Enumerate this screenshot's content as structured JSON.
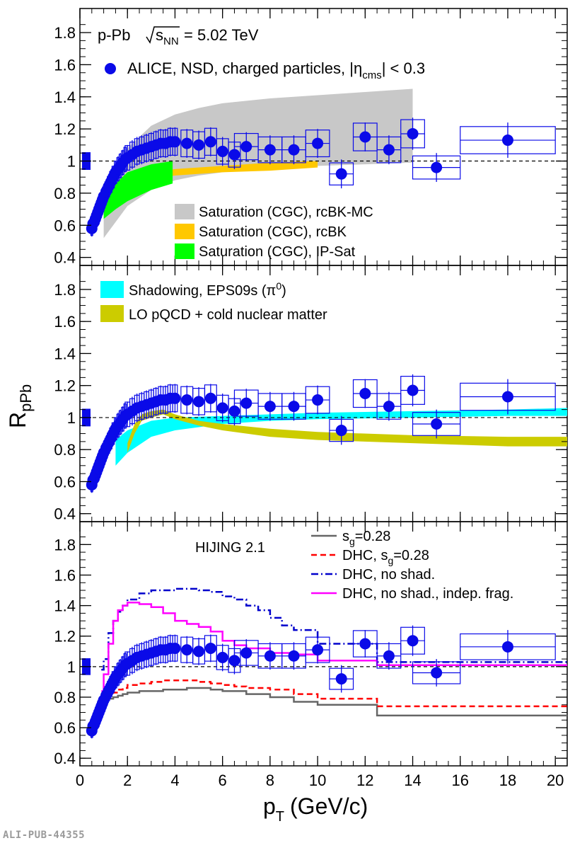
{
  "footer": {
    "publication_id": "ALI-PUB-44355"
  },
  "colors": {
    "alice_points": "#0a0ae8",
    "rcbk_mc": "#c8c8c8",
    "rcbk": "#ffc800",
    "ipsat": "#00ff00",
    "eps09s": "#00ffff",
    "lo_pqcd": "#cccc00",
    "hijing_sg": "#666666",
    "hijing_dhc_sg": "#ff0000",
    "hijing_dhc_noshad": "#0000cc",
    "hijing_dhc_indep": "#ff00ff"
  },
  "chart_data": {
    "type": "scatter",
    "panels": 3,
    "xlabel": "p",
    "xlabel_sub": "T",
    "xlabel_unit": "(GeV/c)",
    "ylabel": "R",
    "ylabel_sub": "pPb",
    "xlim": [
      0,
      20.5
    ],
    "ylim": [
      0.35,
      1.95
    ],
    "x_ticks": [
      "0",
      "2",
      "4",
      "6",
      "8",
      "10",
      "12",
      "14",
      "16",
      "18",
      "20"
    ],
    "y_ticks": [
      "0.4",
      "0.6",
      "0.8",
      "1",
      "1.2",
      "1.4",
      "1.6",
      "1.8"
    ],
    "y_tick_values": [
      0.4,
      0.6,
      0.8,
      1.0,
      1.2,
      1.4,
      1.6,
      1.8
    ],
    "reference_line": 1.0,
    "normalization_box": {
      "center": 1.0,
      "half_height": 0.055
    },
    "header_system": "p-Pb",
    "header_energy_lhs": "s",
    "header_energy_sub": "NN",
    "header_energy_rhs": "= 5.02 TeV",
    "alice_series": {
      "name": "ALICE, NSD, charged particles, |η",
      "name_sub": "cms",
      "name_tail": "| < 0.3",
      "points": [
        [
          0.5,
          0.58,
          0.04,
          0.05
        ],
        [
          0.55,
          0.61,
          0.04,
          0.05
        ],
        [
          0.6,
          0.62,
          0.04,
          0.05
        ],
        [
          0.65,
          0.64,
          0.04,
          0.05
        ],
        [
          0.7,
          0.66,
          0.04,
          0.05
        ],
        [
          0.75,
          0.68,
          0.04,
          0.05
        ],
        [
          0.8,
          0.7,
          0.04,
          0.05
        ],
        [
          0.85,
          0.72,
          0.04,
          0.05
        ],
        [
          0.9,
          0.74,
          0.04,
          0.05
        ],
        [
          0.95,
          0.76,
          0.04,
          0.05
        ],
        [
          1.0,
          0.78,
          0.05,
          0.06
        ],
        [
          1.1,
          0.81,
          0.05,
          0.06
        ],
        [
          1.2,
          0.84,
          0.05,
          0.06
        ],
        [
          1.3,
          0.87,
          0.05,
          0.07
        ],
        [
          1.4,
          0.9,
          0.05,
          0.07
        ],
        [
          1.5,
          0.93,
          0.05,
          0.07
        ],
        [
          1.6,
          0.95,
          0.05,
          0.08
        ],
        [
          1.7,
          0.97,
          0.05,
          0.08
        ],
        [
          1.8,
          0.99,
          0.05,
          0.08
        ],
        [
          1.9,
          1.01,
          0.05,
          0.08
        ],
        [
          2.0,
          1.02,
          0.1,
          0.08
        ],
        [
          2.2,
          1.04,
          0.1,
          0.09
        ],
        [
          2.4,
          1.06,
          0.1,
          0.09
        ],
        [
          2.6,
          1.07,
          0.1,
          0.09
        ],
        [
          2.8,
          1.08,
          0.1,
          0.09
        ],
        [
          3.0,
          1.09,
          0.1,
          0.09
        ],
        [
          3.2,
          1.1,
          0.1,
          0.09
        ],
        [
          3.4,
          1.11,
          0.1,
          0.09
        ],
        [
          3.6,
          1.11,
          0.1,
          0.09
        ],
        [
          3.8,
          1.12,
          0.1,
          0.09
        ],
        [
          4.0,
          1.12,
          0.1,
          0.09
        ],
        [
          4.5,
          1.11,
          0.25,
          0.09
        ],
        [
          5.0,
          1.1,
          0.25,
          0.09
        ],
        [
          5.5,
          1.12,
          0.25,
          0.09
        ],
        [
          6.0,
          1.06,
          0.25,
          0.09
        ],
        [
          6.5,
          1.04,
          0.25,
          0.09
        ],
        [
          7.0,
          1.09,
          0.5,
          0.09
        ],
        [
          8.0,
          1.07,
          0.5,
          0.09
        ],
        [
          9.0,
          1.07,
          0.5,
          0.09
        ],
        [
          10.0,
          1.11,
          0.5,
          0.09
        ],
        [
          11.0,
          0.92,
          0.5,
          0.09
        ],
        [
          12.0,
          1.15,
          0.5,
          0.09
        ],
        [
          13.0,
          1.07,
          0.5,
          0.09
        ],
        [
          14.0,
          1.17,
          0.5,
          0.1
        ],
        [
          15.0,
          0.96,
          1.0,
          0.09
        ],
        [
          18.0,
          1.13,
          2.0,
          0.11
        ]
      ]
    },
    "panel_top": {
      "legend": [
        {
          "label": "Saturation (CGC), rcBK-MC",
          "color_key": "rcbk_mc"
        },
        {
          "label": "Saturation (CGC), rcBK",
          "color_key": "rcbk"
        },
        {
          "label": "Saturation (CGC), IP-Sat",
          "color_key": "ipsat"
        }
      ],
      "bands": {
        "rcbk_mc": {
          "x": [
            1.0,
            1.5,
            2.0,
            3.0,
            4.0,
            5.0,
            6.0,
            8.0,
            10.0,
            12.0,
            14.0
          ],
          "lo": [
            0.52,
            0.62,
            0.72,
            0.82,
            0.88,
            0.91,
            0.93,
            0.96,
            0.97,
            0.98,
            0.99
          ],
          "hi": [
            0.8,
            0.95,
            1.08,
            1.22,
            1.29,
            1.33,
            1.36,
            1.39,
            1.41,
            1.43,
            1.45
          ]
        },
        "rcbk": {
          "x": [
            1.5,
            2.0,
            3.0,
            4.0,
            6.0,
            8.0,
            10.0
          ],
          "lo": [
            0.78,
            0.84,
            0.89,
            0.91,
            0.93,
            0.94,
            0.96
          ],
          "hi": [
            0.82,
            0.88,
            0.93,
            0.95,
            0.97,
            0.99,
            1.0
          ]
        },
        "ipsat": {
          "x": [
            1.0,
            1.5,
            2.0,
            3.0,
            3.9
          ],
          "lo": [
            0.64,
            0.7,
            0.75,
            0.82,
            0.86
          ],
          "hi": [
            0.77,
            0.86,
            0.93,
            0.98,
            1.0
          ]
        }
      }
    },
    "panel_mid": {
      "legend": [
        {
          "label": "Shadowing, EPS09s (π",
          "sup": "0",
          "tail": ")",
          "color_key": "eps09s"
        },
        {
          "label": "LO pQCD + cold nuclear matter",
          "color_key": "lo_pqcd"
        }
      ],
      "bands": {
        "eps09s": {
          "x": [
            1.5,
            2.0,
            3.0,
            4.0,
            6.0,
            8.0,
            10.0,
            14.0,
            18.0,
            20.5
          ],
          "lo": [
            0.7,
            0.78,
            0.88,
            0.92,
            0.96,
            0.98,
            0.99,
            1.0,
            1.01,
            1.01
          ],
          "hi": [
            0.86,
            0.92,
            0.98,
            1.0,
            1.01,
            1.02,
            1.03,
            1.04,
            1.05,
            1.06
          ]
        },
        "lo_pqcd": {
          "x": [
            2.0,
            2.3,
            2.6,
            3.0,
            3.5,
            4.0,
            5.0,
            6.0,
            8.0,
            10.0,
            14.0,
            18.0,
            20.5
          ],
          "lo": [
            0.78,
            0.9,
            0.98,
            1.0,
            1.02,
            0.99,
            0.95,
            0.92,
            0.88,
            0.86,
            0.84,
            0.82,
            0.82
          ],
          "hi": [
            0.84,
            0.96,
            1.02,
            1.04,
            1.05,
            1.02,
            0.98,
            0.96,
            0.93,
            0.91,
            0.89,
            0.88,
            0.88
          ]
        }
      }
    },
    "panel_bot": {
      "generator": "HIJING 2.1",
      "legend": [
        {
          "label": "s",
          "sub": "g",
          "tail": "=0.28",
          "color_key": "hijing_sg",
          "dash": "solid"
        },
        {
          "label": "DHC, s",
          "sub": "g",
          "tail": "=0.28",
          "color_key": "hijing_dhc_sg",
          "dash": "dash"
        },
        {
          "label": "DHC, no shad.",
          "color_key": "hijing_dhc_noshad",
          "dash": "dashdot"
        },
        {
          "label": "DHC, no shad., indep. frag.",
          "color_key": "hijing_dhc_indep",
          "dash": "solid"
        }
      ],
      "curves": {
        "hijing_sg": {
          "edges": [
            0.9,
            1.0,
            1.2,
            1.4,
            1.6,
            1.8,
            2.0,
            2.5,
            3.0,
            3.5,
            4.0,
            4.5,
            5.0,
            5.5,
            6.0,
            6.5,
            7.0,
            8.0,
            9.0,
            10.0,
            12.5,
            20.5
          ],
          "values": [
            0.76,
            0.78,
            0.79,
            0.8,
            0.81,
            0.82,
            0.83,
            0.84,
            0.84,
            0.85,
            0.85,
            0.86,
            0.86,
            0.85,
            0.84,
            0.84,
            0.82,
            0.8,
            0.77,
            0.75,
            0.68
          ]
        },
        "hijing_dhc_sg": {
          "edges": [
            0.9,
            1.0,
            1.2,
            1.4,
            1.6,
            1.8,
            2.0,
            2.5,
            3.0,
            3.5,
            4.0,
            4.5,
            5.0,
            5.5,
            6.0,
            6.5,
            7.0,
            8.0,
            9.0,
            10.0,
            12.5,
            20.5
          ],
          "values": [
            0.78,
            0.8,
            0.82,
            0.83,
            0.85,
            0.86,
            0.88,
            0.89,
            0.9,
            0.91,
            0.91,
            0.91,
            0.9,
            0.89,
            0.88,
            0.87,
            0.86,
            0.85,
            0.82,
            0.79,
            0.74
          ]
        },
        "hijing_dhc_noshad": {
          "edges": [
            0.9,
            1.0,
            1.2,
            1.4,
            1.6,
            1.8,
            2.0,
            2.5,
            3.0,
            3.5,
            4.0,
            4.5,
            5.0,
            5.5,
            6.0,
            6.5,
            7.0,
            7.5,
            8.0,
            8.5,
            9.0,
            10.0,
            12.5,
            20.5
          ],
          "values": [
            0.98,
            1.05,
            1.22,
            1.3,
            1.36,
            1.4,
            1.44,
            1.48,
            1.5,
            1.5,
            1.51,
            1.51,
            1.5,
            1.49,
            1.46,
            1.44,
            1.4,
            1.37,
            1.32,
            1.27,
            1.24,
            1.15,
            1.03
          ]
        },
        "hijing_dhc_indep": {
          "edges": [
            0.9,
            1.0,
            1.2,
            1.4,
            1.6,
            1.8,
            2.0,
            2.5,
            3.0,
            3.5,
            4.0,
            4.5,
            5.0,
            5.5,
            6.0,
            6.5,
            7.0,
            8.0,
            9.0,
            10.0,
            12.5,
            20.5
          ],
          "values": [
            0.84,
            0.95,
            1.15,
            1.3,
            1.37,
            1.4,
            1.42,
            1.41,
            1.39,
            1.35,
            1.3,
            1.28,
            1.26,
            1.23,
            1.17,
            1.14,
            1.12,
            1.09,
            1.08,
            1.04,
            1.01
          ]
        }
      }
    }
  }
}
